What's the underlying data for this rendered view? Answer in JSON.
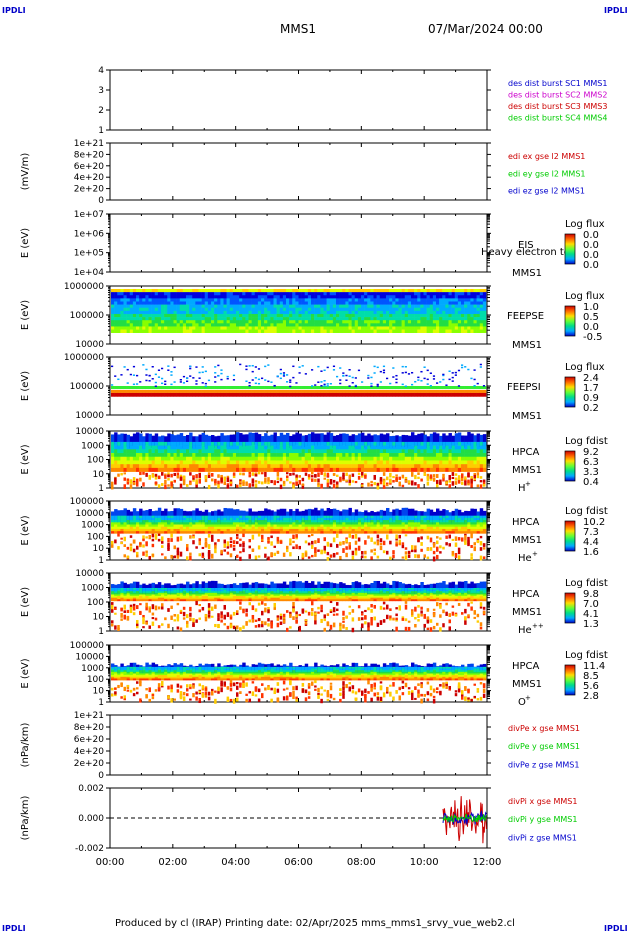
{
  "header": {
    "corner_left_top": "IPDLI",
    "corner_right_top": "IPDLI",
    "corner_left_bottom": "IPDLI",
    "corner_right_bottom": "IPDLI",
    "spacecraft": "MMS1",
    "date": "07/Mar/2024 00:00"
  },
  "footer": {
    "text": "Produced by cl (IRAP)   Printing date: 02/Apr/2025   mms_mms1_srvy_vue_web2.cl"
  },
  "colors": {
    "red": "#cc0000",
    "green": "#00cc00",
    "blue": "#0000cc",
    "magenta": "#cc00cc"
  },
  "chart_data": [
    {
      "type": "line",
      "id": "des",
      "ylabel": "",
      "yticks": [
        "1",
        "2",
        "3",
        "4"
      ],
      "ylim": [
        0.6,
        4.3
      ],
      "legend": [
        {
          "text": "des dist burst SC1 MMS1",
          "color": "blue"
        },
        {
          "text": "des dist burst SC2 MMS2",
          "color": "magenta"
        },
        {
          "text": "des dist burst SC3 MMS3",
          "color": "red"
        },
        {
          "text": "des dist burst SC4 MMS4",
          "color": "green"
        }
      ]
    },
    {
      "type": "line",
      "id": "edi",
      "ylabel": "(mV/m)",
      "yticks": [
        "0",
        "2e+20",
        "4e+20",
        "6e+20",
        "8e+20",
        "1e+21"
      ],
      "ylim": [
        0,
        1e+21
      ],
      "zero_line": true,
      "legend": [
        {
          "text": "edi ex gse l2 MMS1",
          "color": "red"
        },
        {
          "text": "edi ey gse l2 MMS1",
          "color": "green"
        },
        {
          "text": "edi ez gse l2 MMS1",
          "color": "blue"
        }
      ]
    },
    {
      "type": "heatmap",
      "id": "eis",
      "ylabel": "E (eV)",
      "yticks": [
        "1e+04",
        "1e+05",
        "1e+06",
        "1e+07"
      ],
      "labels": [
        "EIS",
        "MMS1"
      ],
      "overlay_label": "Heavy electron to",
      "cbar_title": "Log flux",
      "cbar_ticks": [
        "0.0",
        "0.0",
        "0.0",
        "0.0"
      ],
      "empty": true
    },
    {
      "type": "heatmap",
      "id": "feepse",
      "ylabel": "E (eV)",
      "yticks": [
        "10000",
        "100000",
        "1000000"
      ],
      "labels": [
        "FEEPSE",
        "MMS1"
      ],
      "cbar_title": "Log flux",
      "cbar_ticks": [
        "1.0",
        "0.5",
        "0.0",
        "-0.5"
      ]
    },
    {
      "type": "heatmap",
      "id": "feepsi",
      "ylabel": "E (eV)",
      "yticks": [
        "10000",
        "100000",
        "1000000"
      ],
      "labels": [
        "FEEPSI",
        "MMS1"
      ],
      "cbar_title": "Log flux",
      "cbar_ticks": [
        "2.4",
        "1.7",
        "0.9",
        "0.2"
      ]
    },
    {
      "type": "heatmap",
      "id": "hpca_h",
      "ylabel": "E (eV)",
      "yticks": [
        "1",
        "10",
        "100",
        "1000",
        "10000"
      ],
      "labels": [
        "HPCA",
        "MMS1"
      ],
      "species": "H",
      "charge": "+",
      "cbar_title": "Log fdist",
      "cbar_ticks": [
        "9.2",
        "6.3",
        "3.3",
        "0.4"
      ]
    },
    {
      "type": "heatmap",
      "id": "hpca_he",
      "ylabel": "E (eV)",
      "yticks": [
        "1",
        "10",
        "100",
        "1000",
        "10000",
        "100000"
      ],
      "labels": [
        "HPCA",
        "MMS1"
      ],
      "species": "He",
      "charge": "+",
      "cbar_title": "Log fdist",
      "cbar_ticks": [
        "10.2",
        "7.3",
        "4.4",
        "1.6"
      ]
    },
    {
      "type": "heatmap",
      "id": "hpca_hepp",
      "ylabel": "E (eV)",
      "yticks": [
        "1",
        "10",
        "100",
        "1000",
        "10000"
      ],
      "labels": [
        "HPCA",
        "MMS1"
      ],
      "species": "He",
      "charge": "++",
      "cbar_title": "Log fdist",
      "cbar_ticks": [
        "9.8",
        "7.0",
        "4.1",
        "1.3"
      ]
    },
    {
      "type": "heatmap",
      "id": "hpca_o",
      "ylabel": "E (eV)",
      "yticks": [
        "1",
        "10",
        "100",
        "1000",
        "10000",
        "100000"
      ],
      "labels": [
        "HPCA",
        "MMS1"
      ],
      "species": "O",
      "charge": "+",
      "cbar_title": "Log fdist",
      "cbar_ticks": [
        "11.4",
        "8.5",
        "5.6",
        "2.8"
      ]
    },
    {
      "type": "line",
      "id": "divpe",
      "ylabel": "(nPa/km)",
      "yticks": [
        "0",
        "2e+20",
        "4e+20",
        "6e+20",
        "8e+20",
        "1e+21"
      ],
      "ylim": [
        0,
        1e+21
      ],
      "zero_line": true,
      "legend": [
        {
          "text": "divPe x gse MMS1",
          "color": "red"
        },
        {
          "text": "divPe y gse MMS1",
          "color": "green"
        },
        {
          "text": "divPe z gse MMS1",
          "color": "blue"
        }
      ]
    },
    {
      "type": "line",
      "id": "divpi",
      "ylabel": "(nPa/km)",
      "yticks": [
        "-0.002",
        "0.000",
        "0.002"
      ],
      "ylim": [
        -0.0035,
        0.0035
      ],
      "zero_line": true,
      "data_range_hours": [
        10.6,
        12.0
      ],
      "legend": [
        {
          "text": "divPi x gse MMS1",
          "color": "red"
        },
        {
          "text": "divPi y gse MMS1",
          "color": "green"
        },
        {
          "text": "divPi z gse MMS1",
          "color": "blue"
        }
      ]
    }
  ],
  "x_axis": {
    "ticks": [
      "00:00",
      "02:00",
      "04:00",
      "06:00",
      "08:00",
      "10:00",
      "12:00"
    ],
    "range_hours": [
      0,
      12
    ]
  }
}
